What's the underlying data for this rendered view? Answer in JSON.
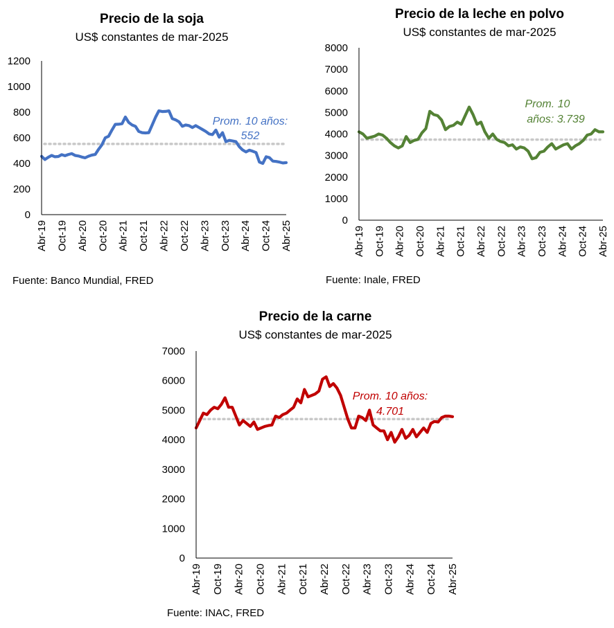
{
  "chart_data": [
    {
      "id": "soja",
      "type": "line",
      "title": "Precio de la soja",
      "subtitle": "US$ constantes de mar-2025",
      "source": "Fuente: Banco Mundial, FRED",
      "color": "#4472C4",
      "ylim": [
        0,
        1200
      ],
      "yticks": [
        "0",
        "200",
        "400",
        "600",
        "800",
        "1000",
        "1200"
      ],
      "ytick_values": [
        0,
        200,
        400,
        600,
        800,
        1000,
        1200
      ],
      "xticks": [
        "Abr-19",
        "Oct-19",
        "Abr-20",
        "Oct-20",
        "Abr-21",
        "Oct-21",
        "Abr-22",
        "Oct-22",
        "Abr-23",
        "Oct-23",
        "Abr-24",
        "Oct-24",
        "Abr-25"
      ],
      "average": 552,
      "annotation": [
        "Prom. 10 años:",
        "552"
      ],
      "values": [
        455,
        430,
        448,
        462,
        452,
        454,
        468,
        460,
        470,
        476,
        462,
        458,
        450,
        444,
        456,
        465,
        470,
        510,
        545,
        600,
        612,
        660,
        705,
        706,
        710,
        762,
        720,
        700,
        690,
        650,
        640,
        638,
        640,
        700,
        760,
        810,
        805,
        806,
        810,
        750,
        740,
        725,
        690,
        700,
        695,
        680,
        695,
        680,
        665,
        650,
        630,
        625,
        660,
        605,
        640,
        570,
        580,
        575,
        570,
        530,
        505,
        490,
        503,
        495,
        485,
        410,
        400,
        452,
        445,
        418,
        415,
        410,
        403,
        406
      ],
      "grid": false,
      "legend": "none"
    },
    {
      "id": "leche",
      "type": "line",
      "title": "Precio de la leche en polvo",
      "subtitle": "US$ constantes de mar-2025",
      "source": "Fuente: Inale, FRED",
      "color": "#548235",
      "ylim": [
        0,
        8000
      ],
      "yticks": [
        "0",
        "1000",
        "2000",
        "3000",
        "4000",
        "5000",
        "6000",
        "7000",
        "8000"
      ],
      "ytick_values": [
        0,
        1000,
        2000,
        3000,
        4000,
        5000,
        6000,
        7000,
        8000
      ],
      "xticks": [
        "Abr-19",
        "Oct-19",
        "Abr-20",
        "Oct-20",
        "Abr-21",
        "Oct-21",
        "Abr-22",
        "Oct-22",
        "Abr-23",
        "Oct-23",
        "Abr-24",
        "Oct-24",
        "Abr-25"
      ],
      "average": 3739,
      "annotation": [
        "Prom. 10",
        "años: 3.739"
      ],
      "values": [
        4100,
        4000,
        3800,
        3850,
        3900,
        4000,
        3950,
        3800,
        3600,
        3450,
        3350,
        3450,
        3880,
        3600,
        3700,
        3750,
        4050,
        4250,
        5050,
        4900,
        4850,
        4650,
        4200,
        4350,
        4400,
        4550,
        4450,
        4850,
        5250,
        4900,
        4450,
        4550,
        4100,
        3800,
        4000,
        3750,
        3650,
        3600,
        3450,
        3500,
        3300,
        3400,
        3350,
        3200,
        2850,
        2900,
        3150,
        3200,
        3400,
        3550,
        3300,
        3400,
        3500,
        3550,
        3300,
        3450,
        3550,
        3700,
        3950,
        4000,
        4200,
        4100,
        4100
      ],
      "grid": false,
      "legend": "none"
    },
    {
      "id": "carne",
      "type": "line",
      "title": "Precio de la carne",
      "subtitle": "US$ constantes de mar-2025",
      "source": "Fuente: INAC, FRED",
      "color": "#C00000",
      "ylim": [
        0,
        7000
      ],
      "yticks": [
        "0",
        "1000",
        "2000",
        "3000",
        "4000",
        "5000",
        "6000",
        "7000"
      ],
      "ytick_values": [
        0,
        1000,
        2000,
        3000,
        4000,
        5000,
        6000,
        7000
      ],
      "xticks": [
        "Abr-19",
        "Oct-19",
        "Abr-20",
        "Oct-20",
        "Abr-21",
        "Oct-21",
        "Abr-22",
        "Oct-22",
        "Abr-23",
        "Oct-23",
        "Abr-24",
        "Oct-24",
        "Abr-25"
      ],
      "average": 4701,
      "annotation": [
        "Prom. 10 años:",
        "4.701"
      ],
      "values": [
        4400,
        4650,
        4900,
        4850,
        5000,
        5100,
        5050,
        5200,
        5420,
        5100,
        5100,
        4800,
        4500,
        4650,
        4550,
        4450,
        4600,
        4350,
        4400,
        4450,
        4480,
        4500,
        4800,
        4750,
        4850,
        4900,
        5000,
        5100,
        5380,
        5250,
        5700,
        5450,
        5500,
        5550,
        5650,
        6050,
        6130,
        5800,
        5900,
        5750,
        5500,
        5100,
        4700,
        4400,
        4400,
        4800,
        4750,
        4650,
        5000,
        4500,
        4400,
        4300,
        4300,
        4000,
        4250,
        3920,
        4100,
        4350,
        4050,
        4150,
        4350,
        4100,
        4250,
        4400,
        4250,
        4550,
        4620,
        4600,
        4750,
        4800,
        4800,
        4780
      ]
    }
  ]
}
